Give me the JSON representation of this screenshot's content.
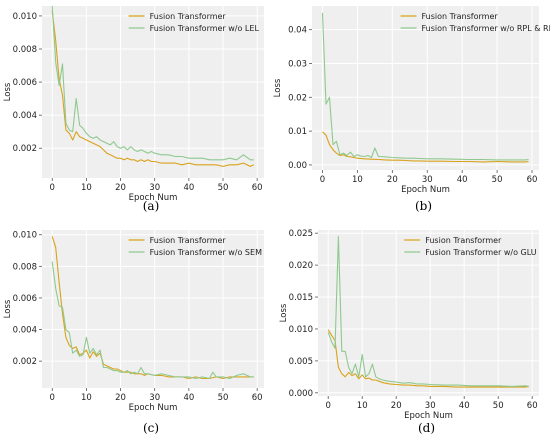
{
  "figure": {
    "xlabel": "Epoch Num",
    "ylabel": "Loss",
    "colors": {
      "baseline": "#d9a21b",
      "ablation": "#8fc98f",
      "plot_bg": "#efefef",
      "grid": "#ffffff"
    }
  },
  "chart_data": [
    {
      "type": "line",
      "caption": "(a)",
      "xlabel": "Epoch Num",
      "ylabel": "Loss",
      "xlim": [
        -3,
        62
      ],
      "ylim": [
        0.0002,
        0.0106
      ],
      "xticks": [
        0,
        10,
        20,
        30,
        40,
        50,
        60
      ],
      "yticks": [
        0.002,
        0.004,
        0.006,
        0.008,
        0.01
      ],
      "ytick_labels": [
        "0.002",
        "0.004",
        "0.006",
        "0.008",
        "0.010"
      ],
      "grid": true,
      "legend": "top-right",
      "series": [
        {
          "name": "Fusion Transformer",
          "color": "#d9a21b",
          "x": [
            0,
            1,
            2,
            3,
            4,
            5,
            6,
            7,
            8,
            9,
            10,
            11,
            12,
            13,
            14,
            15,
            16,
            17,
            18,
            19,
            20,
            21,
            22,
            23,
            24,
            25,
            26,
            27,
            28,
            29,
            30,
            32,
            34,
            36,
            38,
            40,
            42,
            44,
            46,
            48,
            50,
            52,
            54,
            56,
            58,
            59
          ],
          "y": [
            0.0103,
            0.0085,
            0.0062,
            0.0052,
            0.0031,
            0.0029,
            0.0025,
            0.003,
            0.0027,
            0.0026,
            0.0025,
            0.0024,
            0.0023,
            0.0022,
            0.0021,
            0.0019,
            0.0017,
            0.0016,
            0.0015,
            0.0014,
            0.0014,
            0.0013,
            0.0014,
            0.0013,
            0.0013,
            0.0012,
            0.0013,
            0.0012,
            0.0013,
            0.0012,
            0.0012,
            0.0011,
            0.0011,
            0.0011,
            0.001,
            0.0011,
            0.001,
            0.001,
            0.001,
            0.001,
            0.0009,
            0.001,
            0.001,
            0.0011,
            0.0009,
            0.001
          ]
        },
        {
          "name": "Fusion Transformer w/o LEL",
          "color": "#8fc98f",
          "x": [
            0,
            1,
            2,
            3,
            4,
            5,
            6,
            7,
            8,
            9,
            10,
            11,
            12,
            13,
            14,
            15,
            16,
            17,
            18,
            19,
            20,
            21,
            22,
            23,
            24,
            25,
            26,
            27,
            28,
            29,
            30,
            32,
            34,
            36,
            38,
            40,
            42,
            44,
            46,
            48,
            50,
            52,
            54,
            56,
            58,
            59
          ],
          "y": [
            0.0106,
            0.0072,
            0.0058,
            0.0071,
            0.0035,
            0.0031,
            0.003,
            0.005,
            0.0034,
            0.0032,
            0.0029,
            0.0027,
            0.0026,
            0.0027,
            0.0025,
            0.0024,
            0.0023,
            0.0022,
            0.0024,
            0.0021,
            0.002,
            0.0021,
            0.0019,
            0.0021,
            0.0019,
            0.0018,
            0.0019,
            0.0018,
            0.0017,
            0.0018,
            0.0017,
            0.0016,
            0.0016,
            0.0015,
            0.0015,
            0.0014,
            0.0014,
            0.0014,
            0.0013,
            0.0013,
            0.0013,
            0.0014,
            0.0013,
            0.0016,
            0.0013,
            0.0013
          ]
        }
      ]
    },
    {
      "type": "line",
      "caption": "(b)",
      "xlabel": "Epoch Num",
      "ylabel": "Loss",
      "xlim": [
        -3,
        62
      ],
      "ylim": [
        -0.0015,
        0.047
      ],
      "xticks": [
        0,
        10,
        20,
        30,
        40,
        50,
        60
      ],
      "yticks": [
        0.0,
        0.01,
        0.02,
        0.03,
        0.04
      ],
      "ytick_labels": [
        "0.00",
        "0.01",
        "0.02",
        "0.03",
        "0.04"
      ],
      "grid": true,
      "legend": "top-right",
      "series": [
        {
          "name": "Fusion Transformer",
          "color": "#d9a21b",
          "x": [
            0,
            1,
            2,
            3,
            4,
            5,
            6,
            7,
            8,
            9,
            10,
            12,
            14,
            16,
            18,
            20,
            22,
            24,
            26,
            28,
            30,
            34,
            38,
            42,
            46,
            50,
            54,
            58,
            59
          ],
          "y": [
            0.0098,
            0.0088,
            0.006,
            0.0045,
            0.0035,
            0.0028,
            0.003,
            0.0025,
            0.0024,
            0.0022,
            0.002,
            0.0018,
            0.0017,
            0.0016,
            0.0015,
            0.0014,
            0.0014,
            0.0013,
            0.0012,
            0.0012,
            0.0011,
            0.0011,
            0.001,
            0.001,
            0.0009,
            0.001,
            0.0009,
            0.0009,
            0.001
          ]
        },
        {
          "name": "Fusion Transformer w/o RPL & RMA",
          "color": "#8fc98f",
          "x": [
            0,
            1,
            2,
            3,
            4,
            5,
            6,
            7,
            8,
            9,
            10,
            11,
            12,
            13,
            14,
            15,
            16,
            18,
            20,
            22,
            24,
            26,
            28,
            30,
            34,
            38,
            42,
            46,
            50,
            54,
            58,
            59
          ],
          "y": [
            0.045,
            0.018,
            0.02,
            0.006,
            0.007,
            0.003,
            0.0035,
            0.0028,
            0.0038,
            0.0025,
            0.003,
            0.0026,
            0.0025,
            0.0028,
            0.0022,
            0.005,
            0.0025,
            0.0024,
            0.0022,
            0.0021,
            0.002,
            0.002,
            0.0019,
            0.0018,
            0.0018,
            0.0017,
            0.0016,
            0.0016,
            0.0015,
            0.0015,
            0.0015,
            0.0016
          ]
        }
      ]
    },
    {
      "type": "line",
      "caption": "(c)",
      "xlabel": "Epoch Num",
      "ylabel": "Loss",
      "xlim": [
        -3,
        62
      ],
      "ylim": [
        0.0003,
        0.0103
      ],
      "xticks": [
        0,
        10,
        20,
        30,
        40,
        50,
        60
      ],
      "yticks": [
        0.002,
        0.004,
        0.006,
        0.008,
        0.01
      ],
      "ytick_labels": [
        "0.002",
        "0.004",
        "0.006",
        "0.008",
        "0.010"
      ],
      "grid": true,
      "legend": "top-right",
      "series": [
        {
          "name": "Fusion Transformer",
          "color": "#d9a21b",
          "x": [
            0,
            1,
            2,
            3,
            4,
            5,
            6,
            7,
            8,
            9,
            10,
            11,
            12,
            13,
            14,
            15,
            16,
            17,
            18,
            19,
            20,
            21,
            22,
            23,
            24,
            25,
            26,
            27,
            28,
            30,
            32,
            34,
            36,
            38,
            40,
            42,
            44,
            46,
            48,
            50,
            52,
            54,
            56,
            58,
            59
          ],
          "y": [
            0.0099,
            0.0092,
            0.007,
            0.005,
            0.0035,
            0.003,
            0.0028,
            0.0029,
            0.0024,
            0.0025,
            0.0027,
            0.0022,
            0.0026,
            0.0023,
            0.0025,
            0.0018,
            0.0017,
            0.0016,
            0.0015,
            0.0015,
            0.0014,
            0.0013,
            0.0013,
            0.0013,
            0.0012,
            0.0012,
            0.0012,
            0.0011,
            0.0012,
            0.0011,
            0.0011,
            0.001,
            0.001,
            0.001,
            0.0009,
            0.001,
            0.0009,
            0.0009,
            0.001,
            0.0009,
            0.001,
            0.001,
            0.001,
            0.001,
            0.001
          ]
        },
        {
          "name": "Fusion Transformer w/o SEM",
          "color": "#8fc98f",
          "x": [
            0,
            1,
            2,
            3,
            4,
            5,
            6,
            7,
            8,
            9,
            10,
            11,
            12,
            13,
            14,
            15,
            16,
            17,
            18,
            19,
            20,
            21,
            22,
            23,
            24,
            25,
            26,
            27,
            28,
            30,
            32,
            34,
            36,
            38,
            40,
            42,
            44,
            46,
            47,
            48,
            50,
            52,
            54,
            56,
            58,
            59
          ],
          "y": [
            0.0083,
            0.0066,
            0.0055,
            0.0054,
            0.004,
            0.0038,
            0.0025,
            0.0027,
            0.0023,
            0.0024,
            0.0035,
            0.0025,
            0.0028,
            0.0024,
            0.0027,
            0.0016,
            0.0016,
            0.0015,
            0.0014,
            0.0014,
            0.0013,
            0.0013,
            0.0014,
            0.0012,
            0.0013,
            0.0012,
            0.0016,
            0.0012,
            0.0012,
            0.0011,
            0.0012,
            0.0011,
            0.001,
            0.001,
            0.001,
            0.0009,
            0.001,
            0.0009,
            0.0013,
            0.001,
            0.001,
            0.0009,
            0.0011,
            0.0012,
            0.001,
            0.001
          ]
        }
      ]
    },
    {
      "type": "line",
      "caption": "(d)",
      "xlabel": "Epoch Num",
      "ylabel": "Loss",
      "xlim": [
        -3,
        62
      ],
      "ylim": [
        -0.0005,
        0.0255
      ],
      "xticks": [
        0,
        10,
        20,
        30,
        40,
        50,
        60
      ],
      "yticks": [
        0.0,
        0.005,
        0.01,
        0.015,
        0.02,
        0.025
      ],
      "ytick_labels": [
        "0.000",
        "0.005",
        "0.010",
        "0.015",
        "0.020",
        "0.025"
      ],
      "grid": true,
      "legend": "top-right",
      "series": [
        {
          "name": "Fusion Transformer",
          "color": "#d9a21b",
          "x": [
            0,
            1,
            2,
            3,
            4,
            5,
            6,
            7,
            8,
            9,
            10,
            11,
            12,
            13,
            14,
            15,
            16,
            18,
            20,
            22,
            24,
            26,
            28,
            30,
            34,
            38,
            42,
            46,
            50,
            54,
            58,
            59
          ],
          "y": [
            0.0099,
            0.009,
            0.0082,
            0.004,
            0.003,
            0.0025,
            0.0032,
            0.0027,
            0.003,
            0.0022,
            0.0028,
            0.0022,
            0.0023,
            0.002,
            0.002,
            0.0018,
            0.0016,
            0.0014,
            0.0013,
            0.0012,
            0.0012,
            0.0011,
            0.0011,
            0.001,
            0.001,
            0.0009,
            0.0009,
            0.0009,
            0.0009,
            0.0009,
            0.0009,
            0.001
          ]
        },
        {
          "name": "Fusion Transformer w/o GLU",
          "color": "#8fc98f",
          "x": [
            0,
            1,
            2,
            3,
            4,
            5,
            6,
            7,
            8,
            9,
            10,
            11,
            12,
            13,
            14,
            15,
            16,
            18,
            20,
            22,
            24,
            26,
            28,
            30,
            34,
            38,
            42,
            46,
            50,
            54,
            58,
            59
          ],
          "y": [
            0.0095,
            0.008,
            0.007,
            0.0245,
            0.0065,
            0.0065,
            0.004,
            0.003,
            0.0045,
            0.0025,
            0.006,
            0.0025,
            0.003,
            0.0045,
            0.0025,
            0.0022,
            0.002,
            0.0018,
            0.0017,
            0.0015,
            0.0016,
            0.0014,
            0.0014,
            0.0013,
            0.0012,
            0.0012,
            0.0011,
            0.0011,
            0.0011,
            0.001,
            0.0011,
            0.001
          ]
        }
      ]
    }
  ]
}
